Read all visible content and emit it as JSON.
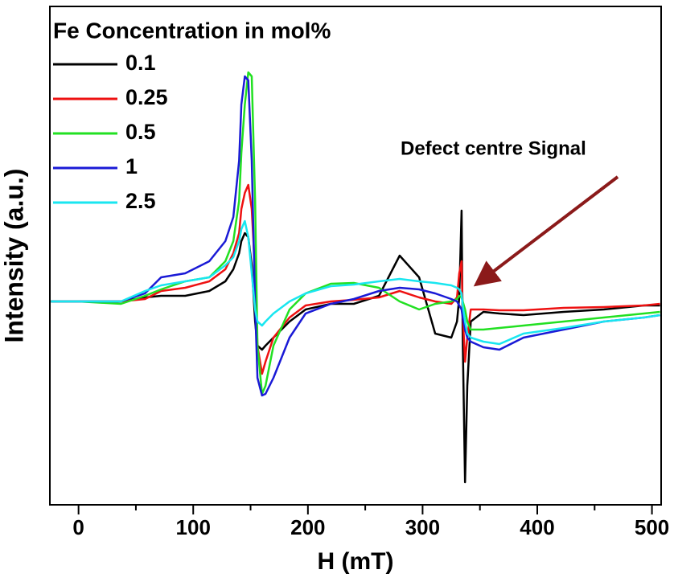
{
  "chart_data": {
    "type": "line",
    "xlabel": "H (mT)",
    "ylabel": "Intensity (a.u.)",
    "legend_title": "Fe Concentration in mol%",
    "annotation": "Defect centre Signal",
    "legend": "upper left",
    "x": [
      -24,
      0,
      37,
      58,
      72,
      93,
      114,
      128,
      135,
      140,
      142,
      145,
      148,
      151,
      154,
      156,
      160,
      163,
      170,
      184,
      198,
      220,
      240,
      262,
      280,
      297,
      311,
      325,
      330,
      332,
      334,
      335,
      337,
      339,
      342,
      353,
      367,
      388,
      423,
      458,
      493,
      507
    ],
    "xlim": [
      -25,
      508
    ],
    "xticks": [
      0,
      100,
      200,
      300,
      400,
      500
    ],
    "xminorticks": [
      50,
      150,
      250,
      350,
      450
    ],
    "ylim": [
      -2.53,
      3.67
    ],
    "series": [
      {
        "name": "0.1",
        "color": "#000000",
        "values": [
          0,
          0,
          0,
          0.05,
          0.07,
          0.07,
          0.13,
          0.25,
          0.4,
          0.6,
          0.75,
          0.85,
          0.8,
          0.45,
          -0.25,
          -0.55,
          -0.6,
          -0.55,
          -0.45,
          -0.25,
          -0.1,
          -0.03,
          -0.03,
          0.07,
          0.57,
          0.3,
          -0.4,
          -0.45,
          -0.25,
          0.05,
          1.13,
          -0.45,
          -2.25,
          -1.05,
          -0.25,
          -0.13,
          -0.15,
          -0.17,
          -0.13,
          -0.1,
          -0.05,
          -0.05
        ]
      },
      {
        "name": "0.25",
        "color": "#ee1111",
        "values": [
          0,
          0,
          0,
          0.03,
          0.13,
          0.17,
          0.25,
          0.4,
          0.6,
          0.85,
          1.15,
          1.35,
          1.45,
          1.15,
          0.35,
          -0.55,
          -0.9,
          -0.75,
          -0.45,
          -0.2,
          -0.05,
          0,
          0.02,
          0.05,
          0.13,
          0.05,
          0,
          -0.03,
          0.05,
          0.35,
          0.5,
          -0.15,
          -0.75,
          -0.45,
          -0.1,
          -0.1,
          -0.11,
          -0.11,
          -0.08,
          -0.07,
          -0.05,
          -0.03
        ]
      },
      {
        "name": "0.5",
        "color": "#22e022",
        "values": [
          0,
          0,
          -0.03,
          0.07,
          0.15,
          0.25,
          0.3,
          0.5,
          0.75,
          1.25,
          1.85,
          2.45,
          2.85,
          2.8,
          1.25,
          -0.55,
          -1.15,
          -1.05,
          -0.55,
          -0.1,
          0.1,
          0.22,
          0.23,
          0.17,
          0,
          -0.1,
          -0.03,
          0,
          0.03,
          0.07,
          0.05,
          0,
          -0.1,
          -0.25,
          -0.35,
          -0.35,
          -0.33,
          -0.3,
          -0.25,
          -0.2,
          -0.15,
          -0.13
        ]
      },
      {
        "name": "1",
        "color": "#1a1ad6",
        "values": [
          0,
          0,
          0,
          0.1,
          0.3,
          0.35,
          0.5,
          0.75,
          1.05,
          1.75,
          2.45,
          2.8,
          2.75,
          1.75,
          -0.05,
          -0.95,
          -1.17,
          -1.15,
          -0.95,
          -0.45,
          -0.15,
          -0.03,
          0.03,
          0.13,
          0.17,
          0.15,
          0.1,
          0.03,
          0,
          -0.05,
          -0.1,
          -0.2,
          -0.35,
          -0.45,
          -0.5,
          -0.57,
          -0.6,
          -0.45,
          -0.35,
          -0.25,
          -0.2,
          -0.17
        ]
      },
      {
        "name": "2.5",
        "color": "#19e6f0",
        "values": [
          0,
          0,
          0,
          0.13,
          0.2,
          0.25,
          0.3,
          0.45,
          0.55,
          0.75,
          0.9,
          1.0,
          0.8,
          0.35,
          -0.1,
          -0.25,
          -0.3,
          -0.25,
          -0.15,
          0,
          0.1,
          0.19,
          0.21,
          0.25,
          0.28,
          0.25,
          0.23,
          0.2,
          0.17,
          0.15,
          0.1,
          -0.05,
          -0.25,
          -0.4,
          -0.45,
          -0.5,
          -0.53,
          -0.4,
          -0.33,
          -0.25,
          -0.2,
          -0.17
        ]
      }
    ]
  }
}
